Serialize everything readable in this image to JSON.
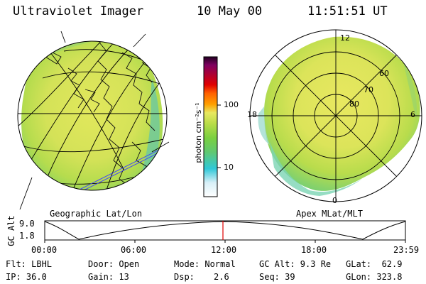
{
  "header": {
    "title": "Ultraviolet Imager",
    "date": "10 May 00",
    "time": "11:51:51 UT"
  },
  "left_panel": {
    "label": "Geographic Lat/Lon"
  },
  "right_panel": {
    "label": "Apex MLat/MLT",
    "mlt_labels": {
      "top": "12",
      "left": "18",
      "right": "6",
      "bottom": "0"
    },
    "lat_labels": [
      "60",
      "70",
      "80"
    ]
  },
  "colorbar": {
    "unit_label": "photon cm⁻²s⁻¹",
    "ticks": [
      "100",
      "10"
    ],
    "colors": [
      "#ffffff",
      "#30c8d8",
      "#7ad040",
      "#d8e050",
      "#ffa000",
      "#e00000",
      "#a0004a",
      "#200020"
    ]
  },
  "timeline": {
    "axis_label": "GC Alt",
    "ymax_label": "9.0",
    "ymin_label": "1.8",
    "ticks": [
      "00:00",
      "06:00",
      "12:00",
      "18:00",
      "23:59"
    ],
    "current_time": "12:00",
    "marker_color": "#e00000"
  },
  "info": {
    "flt": "Flt: LBHL",
    "ip": "IP: 36.0",
    "door": "Door: Open",
    "gain": "Gain: 13",
    "mode": "Mode: Normal",
    "dsp_label": "Dsp:",
    "dsp_value": "2.6",
    "gcalt": "GC Alt: 9.3 Re",
    "seq": "Seq: 39",
    "glat": "GLat:  62.9",
    "glon": "GLon: 323.8"
  }
}
